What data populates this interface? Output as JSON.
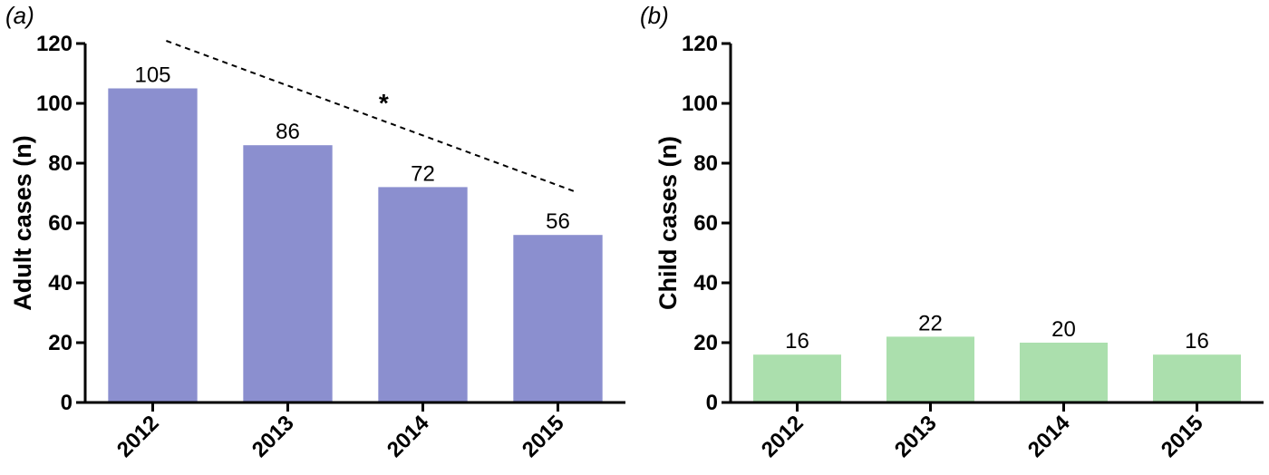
{
  "chart_data": [
    {
      "type": "bar",
      "panel_label": "(a)",
      "categories": [
        "2012",
        "2013",
        "2014",
        "2015"
      ],
      "values": [
        105,
        86,
        72,
        56
      ],
      "data_labels": [
        "105",
        "86",
        "72",
        "56"
      ],
      "ylabel": "Adult cases (n)",
      "xlabel": "",
      "ylim": [
        0,
        120
      ],
      "yticks": [
        0,
        20,
        40,
        60,
        80,
        100,
        120
      ],
      "bar_color": "#8b8fcf",
      "annotation": {
        "text": "*",
        "trend_line": {
          "x_from": "2012",
          "y_from": 120,
          "x_to": "2015",
          "y_to": 70
        }
      },
      "grid": false
    },
    {
      "type": "bar",
      "panel_label": "(b)",
      "categories": [
        "2012",
        "2013",
        "2014",
        "2015"
      ],
      "values": [
        16,
        22,
        20,
        16
      ],
      "data_labels": [
        "16",
        "22",
        "20",
        "16"
      ],
      "ylabel": "Child cases (n)",
      "xlabel": "",
      "ylim": [
        0,
        120
      ],
      "yticks": [
        0,
        20,
        40,
        60,
        80,
        100,
        120
      ],
      "bar_color": "#abdfad",
      "grid": false
    }
  ]
}
